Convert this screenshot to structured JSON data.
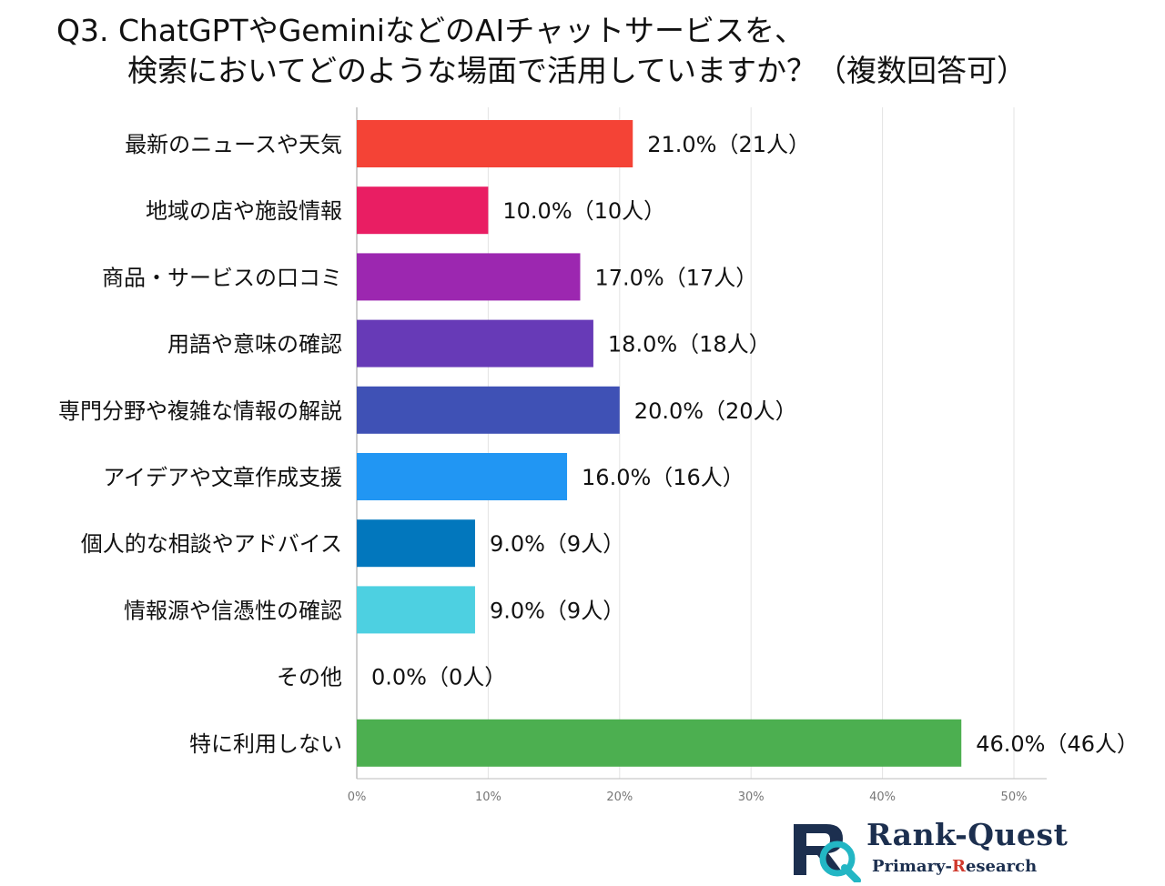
{
  "title": {
    "line1": "Q3. ChatGPTやGeminiなどのAIチャットサービスを、",
    "line2": "検索においてどのような場面で活用していますか？（複数回答可）"
  },
  "chart_data": {
    "type": "bar",
    "orientation": "horizontal",
    "categories": [
      "最新のニュースや天気",
      "地域の店や施設情報",
      "商品・サービスの口コミ",
      "用語や意味の確認",
      "専門分野や複雑な情報の解説",
      "アイデアや文章作成支援",
      "個人的な相談やアドバイス",
      "情報源や信憑性の確認",
      "その他",
      "特に利用しない"
    ],
    "values": [
      21.0,
      10.0,
      17.0,
      18.0,
      20.0,
      16.0,
      9.0,
      9.0,
      0.0,
      46.0
    ],
    "value_labels": [
      "21.0%（21人）",
      "10.0%（10人）",
      "17.0%（17人）",
      "18.0%（18人）",
      "20.0%（20人）",
      "16.0%（16人）",
      "9.0%（9人）",
      "9.0%（9人）",
      "0.0%（0人）",
      "46.0%（46人）"
    ],
    "colors": [
      "#f44336",
      "#e91e63",
      "#9c27b0",
      "#673ab7",
      "#3f51b5",
      "#2196f3",
      "#0277bd",
      "#4dd0e1",
      "#9e9e9e",
      "#4caf50"
    ],
    "xlim": [
      0,
      50
    ],
    "xticks": [
      0,
      10,
      20,
      30,
      40,
      50
    ],
    "xtick_labels": [
      "0%",
      "10%",
      "20%",
      "30%",
      "40%",
      "50%"
    ],
    "grid": true,
    "xlabel": "",
    "ylabel": ""
  },
  "logo": {
    "name": "Rank-Quest",
    "sub_part1": "Primary-",
    "sub_accent": "R",
    "sub_part2": "esearch"
  }
}
